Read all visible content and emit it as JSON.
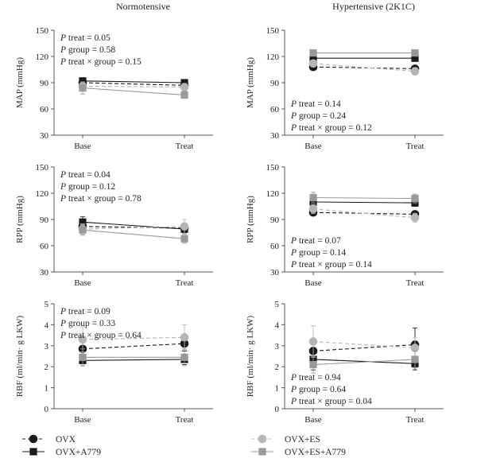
{
  "column_titles": [
    "Normotensive",
    "Hypertensive (2K1C)"
  ],
  "series_styles": [
    {
      "name": "OVX",
      "marker": "circle",
      "color": "#1a1a1a",
      "line": "dashed"
    },
    {
      "name": "OVX+A779",
      "marker": "square",
      "color": "#1a1a1a",
      "line": "solid"
    },
    {
      "name": "OVX+ES",
      "marker": "circle",
      "color": "#b5b5b5",
      "line": "dashed"
    },
    {
      "name": "OVX+ES+A779",
      "marker": "square",
      "color": "#999999",
      "line": "solid"
    }
  ],
  "legend": {
    "placement": "bottom",
    "items": [
      "OVX",
      "OVX+A779",
      "OVX+ES",
      "OVX+ES+A779"
    ]
  },
  "chart_data": [
    {
      "type": "line",
      "row": 0,
      "col": 0,
      "categories": [
        "Base",
        "Treat"
      ],
      "ylabel": "MAP (mmHg)",
      "ylim": [
        30,
        150
      ],
      "yticks": [
        30,
        60,
        90,
        120,
        150
      ],
      "stats": [
        "P treat = 0.05",
        "P group = 0.58",
        "P treat × group = 0.15"
      ],
      "stats_pos": "top",
      "series": [
        {
          "name": "OVX",
          "values": [
            90,
            87
          ],
          "err": [
            3,
            3
          ]
        },
        {
          "name": "OVX+A779",
          "values": [
            92,
            90
          ],
          "err": [
            3,
            3
          ]
        },
        {
          "name": "OVX+ES",
          "values": [
            86,
            85
          ],
          "err": [
            5,
            4
          ]
        },
        {
          "name": "OVX+ES+A779",
          "values": [
            84,
            76
          ],
          "err": [
            7,
            4
          ]
        }
      ]
    },
    {
      "type": "line",
      "row": 0,
      "col": 1,
      "categories": [
        "Base",
        "Treat"
      ],
      "ylabel": "MAP (mmHg)",
      "ylim": [
        30,
        150
      ],
      "yticks": [
        30,
        60,
        90,
        120,
        150
      ],
      "stats": [
        "P treat = 0.14",
        "P group = 0.24",
        "P treat × group = 0.12"
      ],
      "stats_pos": "bottom",
      "series": [
        {
          "name": "OVX",
          "values": [
            108,
            106
          ],
          "err": [
            3,
            3
          ]
        },
        {
          "name": "OVX+A779",
          "values": [
            118,
            118
          ],
          "err": [
            3,
            3
          ]
        },
        {
          "name": "OVX+ES",
          "values": [
            112,
            103
          ],
          "err": [
            4,
            4
          ]
        },
        {
          "name": "OVX+ES+A779",
          "values": [
            124,
            124
          ],
          "err": [
            3,
            3
          ]
        }
      ]
    },
    {
      "type": "line",
      "row": 1,
      "col": 0,
      "categories": [
        "Base",
        "Treat"
      ],
      "ylabel": "RPP (mmHg)",
      "ylim": [
        30,
        150
      ],
      "yticks": [
        30,
        60,
        90,
        120,
        150
      ],
      "stats": [
        "P treat = 0.04",
        "P group = 0.12",
        "P treat × group = 0.78"
      ],
      "stats_pos": "top",
      "series": [
        {
          "name": "OVX",
          "values": [
            82,
            80
          ],
          "err": [
            4,
            4
          ]
        },
        {
          "name": "OVX+A779",
          "values": [
            87,
            79
          ],
          "err": [
            6,
            4
          ]
        },
        {
          "name": "OVX+ES",
          "values": [
            79,
            82
          ],
          "err": [
            6,
            8
          ]
        },
        {
          "name": "OVX+ES+A779",
          "values": [
            78,
            68
          ],
          "err": [
            6,
            5
          ]
        }
      ]
    },
    {
      "type": "line",
      "row": 1,
      "col": 1,
      "categories": [
        "Base",
        "Treat"
      ],
      "ylabel": "RPP (mmHg)",
      "ylim": [
        30,
        150
      ],
      "yticks": [
        30,
        60,
        90,
        120,
        150
      ],
      "stats": [
        "P treat = 0.07",
        "P group = 0.14",
        "P treat × group = 0.14"
      ],
      "stats_pos": "bottom",
      "series": [
        {
          "name": "OVX",
          "values": [
            98,
            96
          ],
          "err": [
            3,
            3
          ]
        },
        {
          "name": "OVX+A779",
          "values": [
            110,
            109
          ],
          "err": [
            4,
            4
          ]
        },
        {
          "name": "OVX+ES",
          "values": [
            102,
            92
          ],
          "err": [
            5,
            5
          ]
        },
        {
          "name": "OVX+ES+A779",
          "values": [
            115,
            114
          ],
          "err": [
            6,
            5
          ]
        }
      ]
    },
    {
      "type": "line",
      "row": 2,
      "col": 0,
      "categories": [
        "Base",
        "Treat"
      ],
      "ylabel": "RBF (ml/min· g LKW)",
      "ylim": [
        0,
        5
      ],
      "yticks": [
        0,
        1,
        2,
        3,
        4,
        5
      ],
      "stats": [
        "P treat = 0.09",
        "P group = 0.33",
        "P treat × group = 0.64"
      ],
      "stats_pos": "top",
      "series": [
        {
          "name": "OVX",
          "values": [
            2.85,
            3.1
          ],
          "err": [
            0.35,
            0.35
          ]
        },
        {
          "name": "OVX+A779",
          "values": [
            2.3,
            2.35
          ],
          "err": [
            0.25,
            0.25
          ]
        },
        {
          "name": "OVX+ES",
          "values": [
            3.3,
            3.4
          ],
          "err": [
            0.6,
            0.6
          ]
        },
        {
          "name": "OVX+ES+A779",
          "values": [
            2.45,
            2.45
          ],
          "err": [
            0.4,
            0.4
          ]
        }
      ]
    },
    {
      "type": "line",
      "row": 2,
      "col": 1,
      "categories": [
        "Base",
        "Treat"
      ],
      "ylabel": "RBF (ml/min· g LKW)",
      "ylim": [
        0,
        5
      ],
      "yticks": [
        0,
        1,
        2,
        3,
        4,
        5
      ],
      "stats": [
        "P treat = 0.94",
        "P group = 0.64",
        "P treat × group = 0.04"
      ],
      "stats_pos": "bottom",
      "series": [
        {
          "name": "OVX",
          "values": [
            2.75,
            3.05
          ],
          "err": [
            0.4,
            0.8
          ]
        },
        {
          "name": "OVX+A779",
          "values": [
            2.35,
            2.15
          ],
          "err": [
            0.5,
            0.3
          ]
        },
        {
          "name": "OVX+ES",
          "values": [
            3.2,
            2.9
          ],
          "err": [
            0.75,
            0.5
          ]
        },
        {
          "name": "OVX+ES+A779",
          "values": [
            2.1,
            2.35
          ],
          "err": [
            0.4,
            0.4
          ]
        }
      ]
    }
  ]
}
